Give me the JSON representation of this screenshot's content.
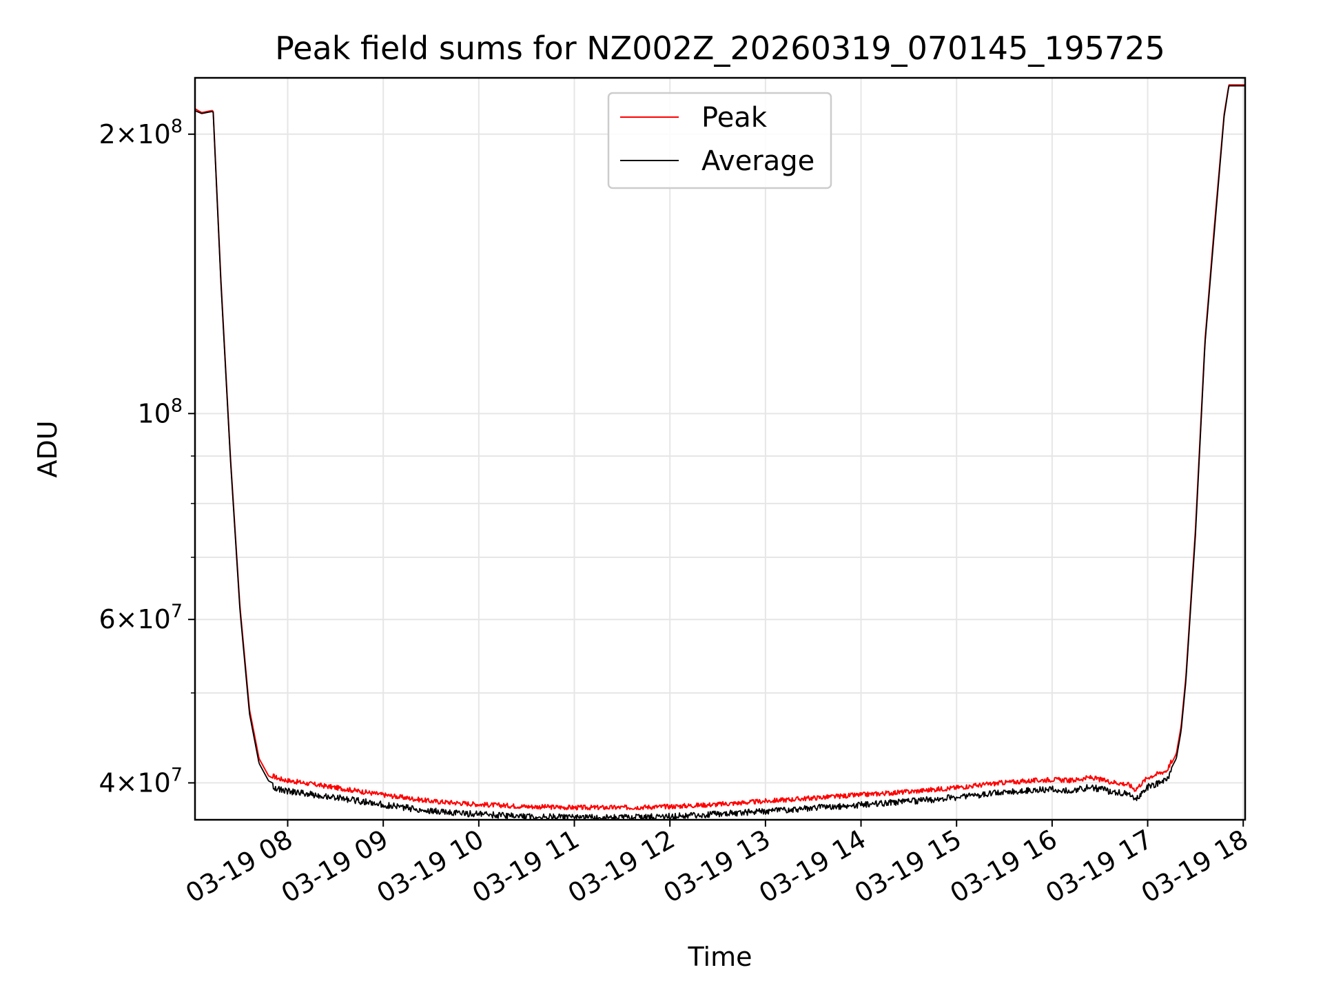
{
  "chart_data": {
    "type": "line",
    "title": "Peak field sums for NZ002Z_20260319_070145_195725",
    "xlabel": "Time",
    "ylabel": "ADU",
    "yscale": "log",
    "ylim": [
      36500000,
      230000000
    ],
    "xlim_hours": [
      7.03,
      18.02
    ],
    "x_ticks": [
      {
        "value": 8,
        "label": "03-19 08"
      },
      {
        "value": 9,
        "label": "03-19 09"
      },
      {
        "value": 10,
        "label": "03-19 10"
      },
      {
        "value": 11,
        "label": "03-19 11"
      },
      {
        "value": 12,
        "label": "03-19 12"
      },
      {
        "value": 13,
        "label": "03-19 13"
      },
      {
        "value": 14,
        "label": "03-19 14"
      },
      {
        "value": 15,
        "label": "03-19 15"
      },
      {
        "value": 16,
        "label": "03-19 16"
      },
      {
        "value": 17,
        "label": "03-19 17"
      },
      {
        "value": 18,
        "label": "03-19 18"
      }
    ],
    "y_ticks": [
      {
        "value": 40000000,
        "mantissa": "4",
        "exp": "7"
      },
      {
        "value": 60000000,
        "mantissa": "6",
        "exp": "7"
      },
      {
        "value": 100000000,
        "mantissa": "",
        "exp": "8"
      },
      {
        "value": 200000000,
        "mantissa": "2",
        "exp": "8"
      }
    ],
    "y_minor_ticks": [
      50000000,
      70000000,
      80000000,
      90000000
    ],
    "grid": true,
    "legend": {
      "position": "top-center",
      "entries": [
        "Peak",
        "Average"
      ]
    },
    "series": [
      {
        "name": "Peak",
        "color": "#ff0000",
        "x": [
          7.03,
          7.1,
          7.2,
          7.22,
          7.3,
          7.4,
          7.5,
          7.6,
          7.7,
          7.8,
          7.9,
          8.0,
          8.5,
          9.0,
          9.5,
          10.0,
          10.5,
          11.0,
          11.5,
          12.0,
          12.5,
          13.0,
          13.5,
          14.0,
          14.5,
          15.0,
          15.5,
          16.0,
          16.2,
          16.4,
          16.6,
          16.8,
          16.87,
          17.0,
          17.2,
          17.3,
          17.35,
          17.4,
          17.5,
          17.6,
          17.7,
          17.8,
          17.85,
          18.02
        ],
        "y": [
          213000000,
          211000000,
          212000000,
          212000000,
          140000000,
          90000000,
          62000000,
          48000000,
          42500000,
          40700000,
          40200000,
          40000000,
          39300000,
          38600000,
          38000000,
          37700000,
          37500000,
          37400000,
          37400000,
          37500000,
          37700000,
          38000000,
          38300000,
          38600000,
          38900000,
          39300000,
          39800000,
          40100000,
          40000000,
          40300000,
          39900000,
          39600000,
          39100000,
          40300000,
          41000000,
          43000000,
          46000000,
          52000000,
          75000000,
          120000000,
          160000000,
          210000000,
          226000000,
          226000000
        ]
      },
      {
        "name": "Average",
        "color": "#000000",
        "x": [
          7.03,
          7.1,
          7.2,
          7.22,
          7.3,
          7.4,
          7.5,
          7.6,
          7.7,
          7.8,
          7.9,
          8.0,
          8.5,
          9.0,
          9.5,
          10.0,
          10.5,
          11.0,
          11.5,
          12.0,
          12.5,
          13.0,
          13.5,
          14.0,
          14.5,
          15.0,
          15.5,
          16.0,
          16.2,
          16.4,
          16.6,
          16.8,
          16.87,
          17.0,
          17.2,
          17.3,
          17.35,
          17.4,
          17.5,
          17.6,
          17.7,
          17.8,
          17.85,
          18.02
        ],
        "y": [
          212000000,
          210500000,
          211500000,
          211500000,
          139000000,
          89500000,
          61500000,
          47500000,
          42000000,
          40200000,
          39700000,
          39500000,
          38900000,
          38200000,
          37600000,
          37300000,
          37100000,
          37000000,
          37000000,
          37100000,
          37300000,
          37600000,
          37900000,
          38200000,
          38500000,
          38900000,
          39400000,
          39700000,
          39600000,
          39900000,
          39500000,
          39200000,
          38700000,
          39900000,
          40600000,
          42500000,
          45500000,
          51500000,
          74000000,
          119000000,
          158000000,
          209000000,
          225500000,
          225500000
        ]
      }
    ]
  }
}
